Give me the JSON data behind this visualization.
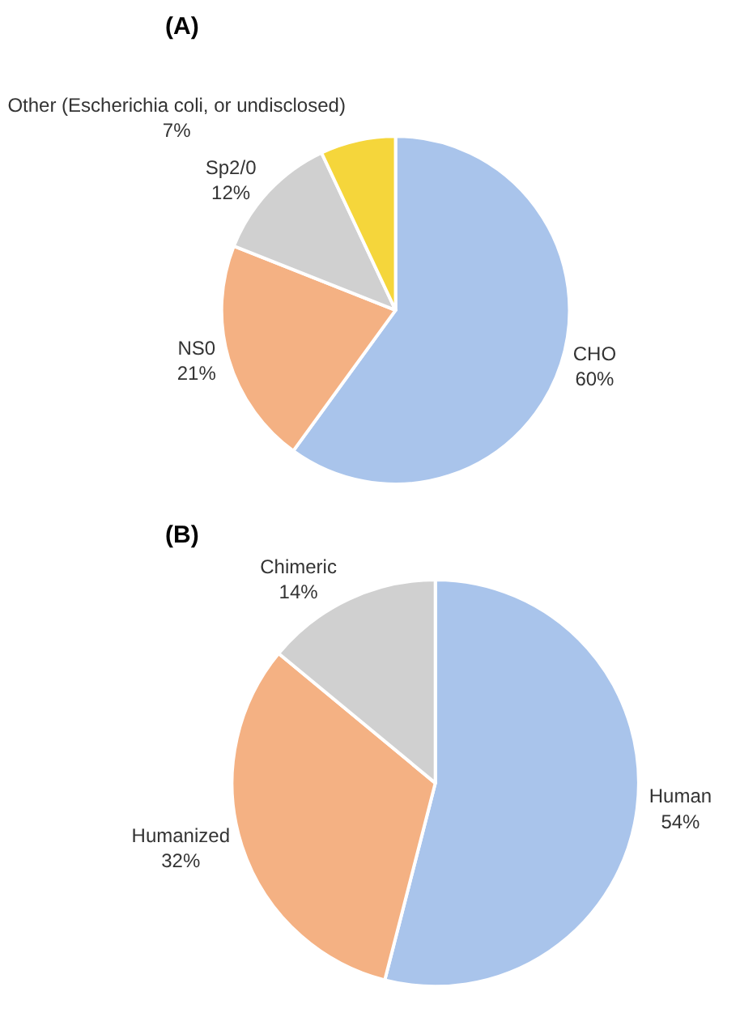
{
  "chart_data": [
    {
      "type": "pie",
      "title": "(A)",
      "categories": [
        "CHO",
        "NS0",
        "Sp2/0",
        "Other (Escherichia coli, or undisclosed)"
      ],
      "values": [
        60,
        21,
        12,
        7
      ],
      "value_labels": [
        "60%",
        "21%",
        "12%",
        "7%"
      ],
      "colors": [
        "#a9c4eb",
        "#f4b183",
        "#d0d0d0",
        "#f5d63b"
      ]
    },
    {
      "type": "pie",
      "title": "(B)",
      "categories": [
        "Human",
        "Humanized",
        "Chimeric"
      ],
      "values": [
        54,
        32,
        14
      ],
      "value_labels": [
        "54%",
        "32%",
        "14%"
      ],
      "colors": [
        "#a9c4eb",
        "#f4b183",
        "#d0d0d0"
      ]
    }
  ]
}
